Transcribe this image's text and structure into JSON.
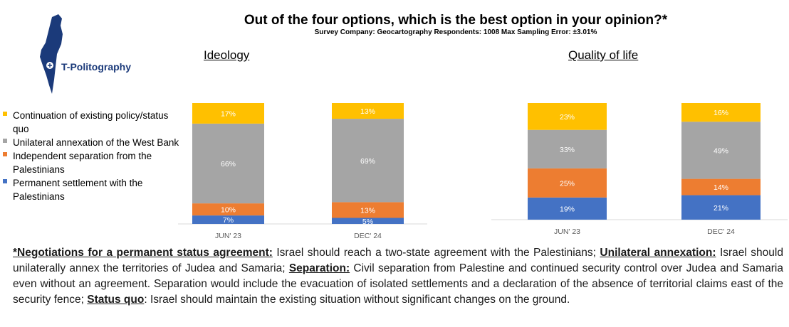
{
  "header": {
    "title": "Out of the four options, which is the best option in your opinion?*",
    "subtitle": "Survey Company: Geocartography Respondents: 1008 Max Sampling Error: ±3.01%"
  },
  "logo": {
    "text": "T-Politography",
    "color": "#1b3a7a"
  },
  "legend": [
    {
      "label": "Continuation of existing policy/status quo",
      "color": "#ffc000"
    },
    {
      "label": "Unilateral annexation of the West Bank",
      "color": "#a5a5a5"
    },
    {
      "label": "Independent separation from the Palestinians",
      "color": "#ed7d31"
    },
    {
      "label": "Permanent settlement with the Palestinians",
      "color": "#4472c4"
    }
  ],
  "chart_data": [
    {
      "type": "bar",
      "stacked": true,
      "title": "Ideology",
      "categories": [
        "JUN' 23",
        "DEC' 24"
      ],
      "series": [
        {
          "name": "Permanent settlement with the Palestinians",
          "color": "#4472c4",
          "values": [
            7,
            5
          ],
          "labels": [
            "7%",
            "5%"
          ]
        },
        {
          "name": "Independent separation from the Palestinians",
          "color": "#ed7d31",
          "values": [
            10,
            13
          ],
          "labels": [
            "10%",
            "13%"
          ]
        },
        {
          "name": "Unilateral annexation of the West Bank",
          "color": "#a5a5a5",
          "values": [
            66,
            69
          ],
          "labels": [
            "66%",
            "69%"
          ]
        },
        {
          "name": "Continuation of existing policy/status quo",
          "color": "#ffc000",
          "values": [
            17,
            13
          ],
          "labels": [
            "17%",
            "13%"
          ]
        }
      ]
    },
    {
      "type": "bar",
      "stacked": true,
      "title": "Quality of life",
      "categories": [
        "JUN' 23",
        "DEC' 24"
      ],
      "series": [
        {
          "name": "Permanent settlement with the Palestinians",
          "color": "#4472c4",
          "values": [
            19,
            21
          ],
          "labels": [
            "19%",
            "21%"
          ]
        },
        {
          "name": "Independent separation from the Palestinians",
          "color": "#ed7d31",
          "values": [
            25,
            14
          ],
          "labels": [
            "25%",
            "14%"
          ]
        },
        {
          "name": "Unilateral annexation of the West Bank",
          "color": "#a5a5a5",
          "values": [
            33,
            49
          ],
          "labels": [
            "33%",
            "49%"
          ]
        },
        {
          "name": "Continuation of existing policy/status quo",
          "color": "#ffc000",
          "values": [
            23,
            16
          ],
          "labels": [
            "23%",
            "16%"
          ]
        }
      ]
    }
  ],
  "footnote": [
    {
      "term": "*Negotiations for a permanent status agreement:",
      "text": " Israel should reach a two-state agreement with the Palestinians; "
    },
    {
      "term": "Unilateral annexation:",
      "text": " Israel should unilaterally annex the territories of Judea and Samaria; "
    },
    {
      "term": "Separation:",
      "text": " Civil separation from Palestine and continued security control over Judea and Samaria even without an agreement. Separation would include the evacuation of isolated settlements and a declaration of the absence of territorial claims east of the security fence; "
    },
    {
      "term": "Status quo",
      "text": ": Israel should maintain the existing situation without significant changes on the ground."
    }
  ]
}
